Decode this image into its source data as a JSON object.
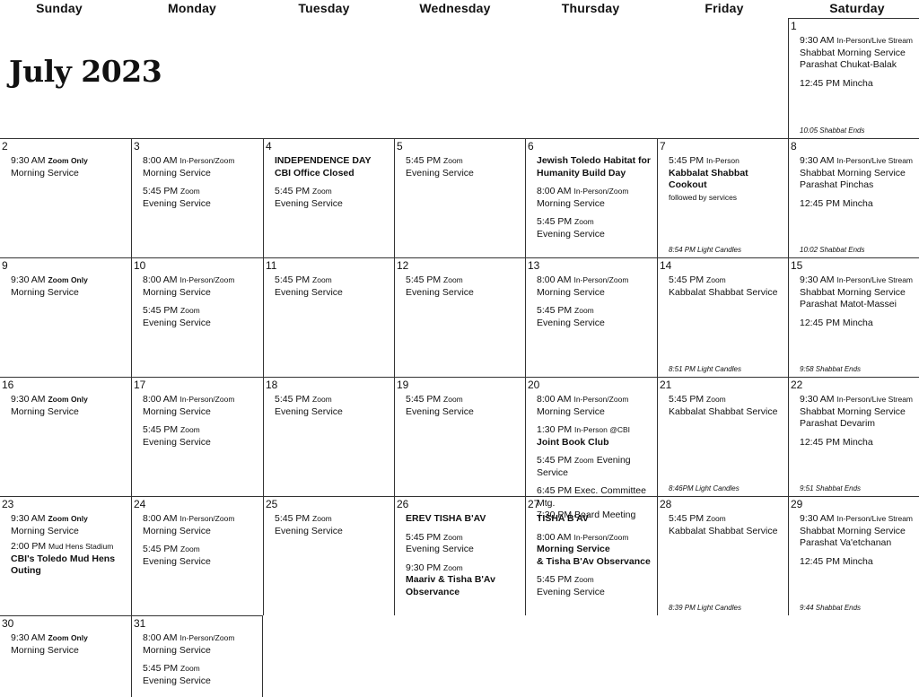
{
  "days_of_week": [
    "Sunday",
    "Monday",
    "Tuesday",
    "Wednesday",
    "Thursday",
    "Friday",
    "Saturday"
  ],
  "title": "July 2023",
  "cells": {
    "d1": {
      "day": "1",
      "note": "10:05 Shabbat Ends",
      "g1": {
        "l1_time": "9:30 AM",
        "l1_tag": "In-Person/Live Stream",
        "l2": "Shabbat Morning Service",
        "l3": "Parashat Chukat-Balak"
      },
      "g2": {
        "l1": "12:45 PM Mincha"
      }
    },
    "d2": {
      "day": "2",
      "g1": {
        "l1_time": "9:30 AM",
        "l1_tag": "Zoom Only",
        "l2": "Morning Service"
      }
    },
    "d3": {
      "day": "3",
      "g1": {
        "l1_time": "8:00 AM",
        "l1_tag": "In-Person/Zoom",
        "l2": "Morning Service"
      },
      "g2": {
        "l1_time": "5:45 PM",
        "l1_tag": "Zoom",
        "l2": "Evening Service"
      }
    },
    "d4": {
      "day": "4",
      "g1": {
        "l1": "INDEPENDENCE DAY",
        "l2": "CBI Office Closed"
      },
      "g2": {
        "l1_time": "5:45 PM",
        "l1_tag": "Zoom",
        "l2": "Evening Service"
      }
    },
    "d5": {
      "day": "5",
      "g1": {
        "l1_time": "5:45 PM",
        "l1_tag": "Zoom",
        "l2": "Evening Service"
      }
    },
    "d6": {
      "day": "6",
      "g1": {
        "l1": "Jewish Toledo Habitat for",
        "l2": "Humanity Build Day"
      },
      "g2": {
        "l1_time": "8:00 AM",
        "l1_tag": "In-Person/Zoom",
        "l2": "Morning Service"
      },
      "g3": {
        "l1_time": "5:45 PM",
        "l1_tag": "Zoom",
        "l2": "Evening Service"
      }
    },
    "d7": {
      "day": "7",
      "note": "8:54 PM Light Candles",
      "g1": {
        "l1_time": "5:45 PM",
        "l1_tag": "In-Person",
        "l2": "Kabbalat Shabbat Cookout",
        "l3": "followed by services"
      }
    },
    "d8": {
      "day": "8",
      "note": "10:02 Shabbat Ends",
      "g1": {
        "l1_time": "9:30 AM",
        "l1_tag": "In-Person/Live Stream",
        "l2": "Shabbat Morning Service",
        "l3": "Parashat Pinchas"
      },
      "g2": {
        "l1": "12:45 PM Mincha"
      }
    },
    "d9": {
      "day": "9",
      "g1": {
        "l1_time": "9:30 AM",
        "l1_tag": "Zoom Only",
        "l2": "Morning Service"
      }
    },
    "d10": {
      "day": "10",
      "g1": {
        "l1_time": "8:00 AM",
        "l1_tag": "In-Person/Zoom",
        "l2": "Morning Service"
      },
      "g2": {
        "l1_time": "5:45 PM",
        "l1_tag": "Zoom",
        "l2": "Evening Service"
      }
    },
    "d11": {
      "day": "11",
      "g1": {
        "l1_time": "5:45 PM",
        "l1_tag": "Zoom",
        "l2": "Evening Service"
      }
    },
    "d12": {
      "day": "12",
      "g1": {
        "l1_time": "5:45 PM",
        "l1_tag": "Zoom",
        "l2": "Evening Service"
      }
    },
    "d13": {
      "day": "13",
      "g1": {
        "l1_time": "8:00 AM",
        "l1_tag": "In-Person/Zoom",
        "l2": "Morning Service"
      },
      "g2": {
        "l1_time": "5:45 PM",
        "l1_tag": "Zoom",
        "l2": "Evening Service"
      }
    },
    "d14": {
      "day": "14",
      "note": "8:51 PM Light Candles",
      "g1": {
        "l1_time": "5:45 PM",
        "l1_tag": "Zoom",
        "l2": "Kabbalat Shabbat Service"
      }
    },
    "d15": {
      "day": "15",
      "note": "9:58 Shabbat Ends",
      "g1": {
        "l1_time": "9:30 AM",
        "l1_tag": "In-Person/Live Stream",
        "l2": "Shabbat Morning Service",
        "l3": "Parashat Matot-Massei"
      },
      "g2": {
        "l1": "12:45 PM Mincha"
      }
    },
    "d16": {
      "day": "16",
      "g1": {
        "l1_time": "9:30 AM",
        "l1_tag": "Zoom Only",
        "l2": "Morning Service"
      }
    },
    "d17": {
      "day": "17",
      "g1": {
        "l1_time": "8:00 AM",
        "l1_tag": "In-Person/Zoom",
        "l2": "Morning Service"
      },
      "g2": {
        "l1_time": "5:45 PM",
        "l1_tag": "Zoom",
        "l2": "Evening Service"
      }
    },
    "d18": {
      "day": "18",
      "g1": {
        "l1_time": "5:45 PM",
        "l1_tag": "Zoom",
        "l2": "Evening Service"
      }
    },
    "d19": {
      "day": "19",
      "g1": {
        "l1_time": "5:45 PM",
        "l1_tag": "Zoom",
        "l2": "Evening Service"
      }
    },
    "d20": {
      "day": "20",
      "g1": {
        "l1_time": "8:00 AM",
        "l1_tag": "In-Person/Zoom",
        "l2": "Morning Service"
      },
      "g2": {
        "l1_time": "1:30 PM",
        "l1_tag": "In-Person @CBI",
        "l2": "Joint Book Club"
      },
      "g3": {
        "l1_time": "5:45 PM",
        "l1_tag": "Zoom",
        "l1_rest": "Evening Service"
      },
      "g4": {
        "l1": "6:45 PM Exec. Committee Mtg.",
        "l2": "7:30 PM Board Meeting"
      }
    },
    "d21": {
      "day": "21",
      "note": "8:46PM Light Candles",
      "g1": {
        "l1_time": "5:45 PM",
        "l1_tag": "Zoom",
        "l2": "Kabbalat Shabbat Service"
      }
    },
    "d22": {
      "day": "22",
      "note": "9:51 Shabbat Ends",
      "g1": {
        "l1_time": "9:30 AM",
        "l1_tag": "In-Person/Live Stream",
        "l2": "Shabbat Morning Service",
        "l3": "Parashat Devarim"
      },
      "g2": {
        "l1": "12:45 PM Mincha"
      }
    },
    "d23": {
      "day": "23",
      "g1": {
        "l1_time": "9:30 AM",
        "l1_tag": "Zoom Only",
        "l2": "Morning Service"
      },
      "g2": {
        "l1_time": "2:00 PM",
        "l1_tag": "Mud Hens Stadium",
        "l2": "CBI's Toledo Mud Hens",
        "l3": "Outing"
      }
    },
    "d24": {
      "day": "24",
      "g1": {
        "l1_time": "8:00 AM",
        "l1_tag": "In-Person/Zoom",
        "l2": "Morning Service"
      },
      "g2": {
        "l1_time": "5:45 PM",
        "l1_tag": "Zoom",
        "l2": "Evening Service"
      }
    },
    "d25": {
      "day": "25",
      "g1": {
        "l1_time": "5:45 PM",
        "l1_tag": "Zoom",
        "l2": "Evening Service"
      }
    },
    "d26": {
      "day": "26",
      "g1": {
        "l1": "EREV TISHA B'AV"
      },
      "g2": {
        "l1_time": "5:45 PM",
        "l1_tag": "Zoom",
        "l2": "Evening Service"
      },
      "g3": {
        "l1_time": "9:30 PM",
        "l1_tag": "Zoom",
        "l2": "Maariv & Tisha B'Av",
        "l3": "Observance"
      }
    },
    "d27": {
      "day": "27",
      "g1": {
        "l1": "TISHA B'AV"
      },
      "g2": {
        "l1_time": "8:00 AM",
        "l1_tag": "In-Person/Zoom",
        "l2": "Morning Service",
        "l3": "& Tisha B'Av Observance"
      },
      "g3": {
        "l1_time": "5:45 PM",
        "l1_tag": "Zoom",
        "l2": "Evening Service"
      }
    },
    "d28": {
      "day": "28",
      "note": "8:39 PM Light Candles",
      "g1": {
        "l1_time": "5:45 PM",
        "l1_tag": "Zoom",
        "l2": "Kabbalat Shabbat Service"
      }
    },
    "d29": {
      "day": "29",
      "note": "9:44 Shabbat Ends",
      "g1": {
        "l1_time": "9:30 AM",
        "l1_tag": "In-Person/Live Stream",
        "l2": "Shabbat Morning Service",
        "l3": "Parashat Va'etchanan"
      },
      "g2": {
        "l1": "12:45 PM Mincha"
      }
    },
    "d30": {
      "day": "30",
      "g1": {
        "l1_time": "9:30 AM",
        "l1_tag": "Zoom Only",
        "l2": "Morning Service"
      }
    },
    "d31": {
      "day": "31",
      "g1": {
        "l1_time": "8:00 AM",
        "l1_tag": "In-Person/Zoom",
        "l2": "Morning Service"
      },
      "g2": {
        "l1_time": "5:45 PM",
        "l1_tag": "Zoom",
        "l2": "Evening Service"
      }
    }
  }
}
